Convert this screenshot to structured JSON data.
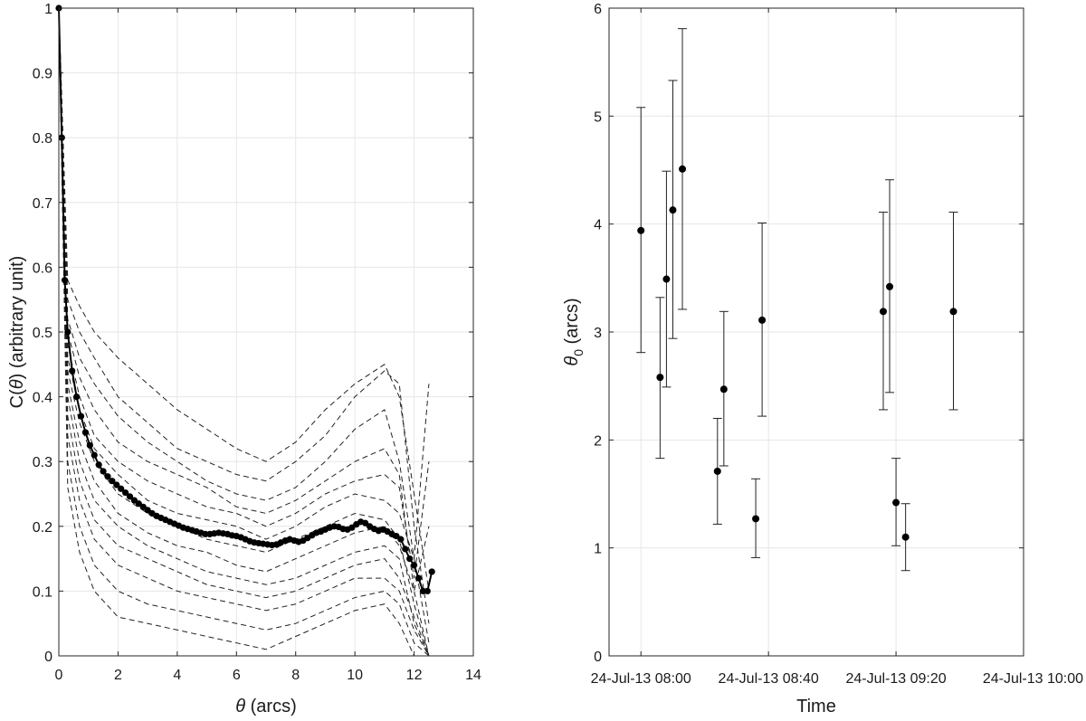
{
  "chart_data": [
    {
      "type": "line",
      "xlabel_pre": "",
      "xlabel_sym": "θ",
      "xlabel_post": " (arcs)",
      "ylabel_pre": "C(",
      "ylabel_sym": "θ",
      "ylabel_post": ") (arbitrary unit)",
      "xlim": [
        0,
        14
      ],
      "ylim": [
        0,
        1
      ],
      "xticks": [
        0,
        2,
        4,
        6,
        8,
        10,
        12,
        14
      ],
      "yticks": [
        0,
        0.1,
        0.2,
        0.3,
        0.4,
        0.5,
        0.6,
        0.7,
        0.8,
        0.9,
        1
      ],
      "xtick_labels": [
        "0",
        "2",
        "4",
        "6",
        "8",
        "10",
        "12",
        "14"
      ],
      "ytick_labels": [
        "0",
        "0.1",
        "0.2",
        "0.3",
        "0.4",
        "0.5",
        "0.6",
        "0.7",
        "0.8",
        "0.9",
        "1"
      ],
      "grid": true,
      "mean": {
        "style": "solid-black-with-dots",
        "x": [
          0,
          0.1,
          0.2,
          0.3,
          0.45,
          0.6,
          0.75,
          0.9,
          1.05,
          1.2,
          1.35,
          1.5,
          1.65,
          1.8,
          1.95,
          2.1,
          2.25,
          2.4,
          2.55,
          2.7,
          2.85,
          3.0,
          3.15,
          3.3,
          3.45,
          3.6,
          3.75,
          3.9,
          4.05,
          4.2,
          4.35,
          4.5,
          4.65,
          4.8,
          4.95,
          5.1,
          5.25,
          5.4,
          5.55,
          5.7,
          5.85,
          6.0,
          6.15,
          6.3,
          6.45,
          6.6,
          6.75,
          6.9,
          7.05,
          7.2,
          7.35,
          7.5,
          7.65,
          7.8,
          7.95,
          8.1,
          8.25,
          8.4,
          8.55,
          8.7,
          8.85,
          9.0,
          9.15,
          9.3,
          9.45,
          9.6,
          9.75,
          9.9,
          10.05,
          10.2,
          10.35,
          10.5,
          10.65,
          10.8,
          10.95,
          11.1,
          11.25,
          11.4,
          11.55,
          11.7,
          11.85,
          12.0,
          12.15,
          12.3,
          12.45,
          12.6
        ],
        "y": [
          1.0,
          0.8,
          0.58,
          0.5,
          0.44,
          0.4,
          0.37,
          0.345,
          0.325,
          0.31,
          0.295,
          0.285,
          0.277,
          0.27,
          0.264,
          0.258,
          0.252,
          0.246,
          0.24,
          0.235,
          0.23,
          0.225,
          0.22,
          0.216,
          0.213,
          0.21,
          0.207,
          0.204,
          0.201,
          0.198,
          0.196,
          0.194,
          0.192,
          0.19,
          0.188,
          0.188,
          0.189,
          0.19,
          0.189,
          0.188,
          0.186,
          0.185,
          0.183,
          0.18,
          0.177,
          0.175,
          0.174,
          0.173,
          0.172,
          0.171,
          0.172,
          0.175,
          0.178,
          0.18,
          0.178,
          0.176,
          0.178,
          0.182,
          0.186,
          0.19,
          0.192,
          0.195,
          0.198,
          0.2,
          0.199,
          0.196,
          0.195,
          0.198,
          0.203,
          0.207,
          0.205,
          0.2,
          0.196,
          0.193,
          0.195,
          0.192,
          0.188,
          0.185,
          0.18,
          0.165,
          0.15,
          0.14,
          0.12,
          0.1,
          0.1,
          0.13
        ]
      },
      "dashed_series": [
        {
          "x": [
            0,
            0.3,
            0.7,
            1.2,
            2,
            3,
            4,
            5,
            6,
            7,
            8,
            9,
            10,
            11,
            11.5,
            12,
            12.5
          ],
          "y": [
            1,
            0.58,
            0.54,
            0.5,
            0.46,
            0.42,
            0.38,
            0.35,
            0.32,
            0.3,
            0.33,
            0.38,
            0.42,
            0.45,
            0.4,
            0.25,
            0.1
          ]
        },
        {
          "x": [
            0,
            0.3,
            0.7,
            1.2,
            2,
            3,
            4,
            5,
            6,
            7,
            8,
            9,
            10,
            11,
            11.5,
            12,
            12.5
          ],
          "y": [
            1,
            0.55,
            0.5,
            0.46,
            0.4,
            0.36,
            0.32,
            0.3,
            0.28,
            0.27,
            0.3,
            0.34,
            0.4,
            0.44,
            0.42,
            0.2,
            0.05
          ]
        },
        {
          "x": [
            0,
            0.3,
            0.7,
            1.2,
            2,
            3,
            4,
            5,
            6,
            7,
            8,
            9,
            10,
            11,
            11.5,
            12,
            12.5
          ],
          "y": [
            1,
            0.52,
            0.46,
            0.42,
            0.37,
            0.33,
            0.3,
            0.27,
            0.25,
            0.24,
            0.26,
            0.3,
            0.35,
            0.38,
            0.3,
            0.15,
            0.02
          ]
        },
        {
          "x": [
            0,
            0.3,
            0.7,
            1.2,
            2,
            3,
            4,
            5,
            6,
            7,
            8,
            9,
            10,
            11,
            11.5,
            12,
            12.5
          ],
          "y": [
            1,
            0.5,
            0.43,
            0.38,
            0.33,
            0.3,
            0.28,
            0.26,
            0.23,
            0.22,
            0.24,
            0.27,
            0.3,
            0.32,
            0.28,
            0.1,
            0.0
          ]
        },
        {
          "x": [
            0,
            0.3,
            0.7,
            1.2,
            2,
            3,
            4,
            5,
            6,
            7,
            8,
            9,
            10,
            11,
            11.5,
            12,
            12.5
          ],
          "y": [
            1,
            0.48,
            0.4,
            0.34,
            0.3,
            0.27,
            0.25,
            0.23,
            0.22,
            0.2,
            0.22,
            0.25,
            0.27,
            0.28,
            0.26,
            0.12,
            0.3
          ]
        },
        {
          "x": [
            0,
            0.3,
            0.7,
            1.2,
            2,
            3,
            4,
            5,
            6,
            7,
            8,
            9,
            10,
            11,
            11.5,
            12,
            12.5
          ],
          "y": [
            1,
            0.46,
            0.38,
            0.32,
            0.28,
            0.24,
            0.22,
            0.21,
            0.2,
            0.18,
            0.2,
            0.23,
            0.25,
            0.24,
            0.22,
            0.15,
            0.42
          ]
        },
        {
          "x": [
            0,
            0.3,
            0.7,
            1.2,
            2,
            3,
            4,
            5,
            6,
            7,
            8,
            9,
            10,
            11,
            11.5,
            12,
            12.5
          ],
          "y": [
            1,
            0.44,
            0.36,
            0.3,
            0.25,
            0.22,
            0.2,
            0.18,
            0.17,
            0.16,
            0.18,
            0.2,
            0.22,
            0.21,
            0.18,
            0.08,
            0.0
          ]
        },
        {
          "x": [
            0,
            0.3,
            0.7,
            1.2,
            2,
            3,
            4,
            5,
            6,
            7,
            8,
            9,
            10,
            11,
            11.5,
            12,
            12.5
          ],
          "y": [
            1,
            0.42,
            0.33,
            0.27,
            0.22,
            0.19,
            0.17,
            0.16,
            0.14,
            0.13,
            0.15,
            0.17,
            0.19,
            0.2,
            0.17,
            0.1,
            0.2
          ]
        },
        {
          "x": [
            0,
            0.3,
            0.7,
            1.2,
            2,
            3,
            4,
            5,
            6,
            7,
            8,
            9,
            10,
            11,
            11.5,
            12,
            12.5
          ],
          "y": [
            1,
            0.4,
            0.3,
            0.24,
            0.2,
            0.17,
            0.15,
            0.13,
            0.12,
            0.11,
            0.12,
            0.14,
            0.16,
            0.17,
            0.15,
            0.05,
            0.0
          ]
        },
        {
          "x": [
            0,
            0.3,
            0.7,
            1.2,
            2,
            3,
            4,
            5,
            6,
            7,
            8,
            9,
            10,
            11,
            11.5,
            12,
            12.5
          ],
          "y": [
            1,
            0.37,
            0.27,
            0.21,
            0.17,
            0.15,
            0.13,
            0.11,
            0.1,
            0.09,
            0.1,
            0.12,
            0.14,
            0.15,
            0.12,
            0.06,
            0.0
          ]
        },
        {
          "x": [
            0,
            0.3,
            0.7,
            1.2,
            2,
            3,
            4,
            5,
            6,
            7,
            8,
            9,
            10,
            11,
            11.5,
            12,
            12.5
          ],
          "y": [
            1,
            0.34,
            0.24,
            0.18,
            0.14,
            0.12,
            0.1,
            0.09,
            0.08,
            0.07,
            0.08,
            0.1,
            0.12,
            0.12,
            0.1,
            0.04,
            0.0
          ]
        },
        {
          "x": [
            0,
            0.3,
            0.7,
            1.2,
            2,
            3,
            4,
            5,
            6,
            7,
            8,
            9,
            10,
            11,
            11.5,
            12,
            12.5
          ],
          "y": [
            1,
            0.3,
            0.2,
            0.14,
            0.1,
            0.08,
            0.07,
            0.06,
            0.05,
            0.04,
            0.05,
            0.07,
            0.09,
            0.1,
            0.08,
            0.02,
            0.0
          ]
        },
        {
          "x": [
            0,
            0.3,
            0.7,
            1.2,
            2,
            3,
            4,
            5,
            6,
            7,
            8,
            9,
            10,
            11,
            11.5,
            12,
            12.5
          ],
          "y": [
            1,
            0.26,
            0.16,
            0.1,
            0.06,
            0.05,
            0.04,
            0.03,
            0.02,
            0.01,
            0.03,
            0.05,
            0.07,
            0.08,
            0.05,
            0.0,
            0.0
          ]
        }
      ]
    },
    {
      "type": "scatter",
      "xlabel": "Time",
      "ylabel_sym": "θ",
      "ylabel_sub": "0",
      "ylabel_post": " (arcs)",
      "xlim": [
        "24-Jul-13 07:50",
        "24-Jul-13 10:00"
      ],
      "ylim": [
        0,
        6
      ],
      "xticks": [
        "24-Jul-13 08:00",
        "24-Jul-13 08:40",
        "24-Jul-13 09:20",
        "24-Jul-13 10:00"
      ],
      "yticks": [
        0,
        1,
        2,
        3,
        4,
        5,
        6
      ],
      "ytick_labels": [
        "0",
        "1",
        "2",
        "3",
        "4",
        "5",
        "6"
      ],
      "grid": true,
      "points": [
        {
          "time": "24-Jul-13 08:00",
          "y": 3.94,
          "lower": 2.81,
          "upper": 5.08
        },
        {
          "time": "24-Jul-13 08:06",
          "y": 2.58,
          "lower": 1.83,
          "upper": 3.32
        },
        {
          "time": "24-Jul-13 08:08",
          "y": 3.49,
          "lower": 2.49,
          "upper": 4.49
        },
        {
          "time": "24-Jul-13 08:10",
          "y": 4.13,
          "lower": 2.94,
          "upper": 5.33
        },
        {
          "time": "24-Jul-13 08:13",
          "y": 4.51,
          "lower": 3.21,
          "upper": 5.81
        },
        {
          "time": "24-Jul-13 08:24",
          "y": 1.71,
          "lower": 1.22,
          "upper": 2.2
        },
        {
          "time": "24-Jul-13 08:26",
          "y": 2.47,
          "lower": 1.76,
          "upper": 3.19
        },
        {
          "time": "24-Jul-13 08:36",
          "y": 1.27,
          "lower": 0.91,
          "upper": 1.64
        },
        {
          "time": "24-Jul-13 08:38",
          "y": 3.11,
          "lower": 2.22,
          "upper": 4.01
        },
        {
          "time": "24-Jul-13 09:16",
          "y": 3.19,
          "lower": 2.28,
          "upper": 4.11
        },
        {
          "time": "24-Jul-13 09:18",
          "y": 3.42,
          "lower": 2.44,
          "upper": 4.41
        },
        {
          "time": "24-Jul-13 09:20",
          "y": 1.42,
          "lower": 1.02,
          "upper": 1.83
        },
        {
          "time": "24-Jul-13 09:23",
          "y": 1.1,
          "lower": 0.79,
          "upper": 1.41
        },
        {
          "time": "24-Jul-13 09:38",
          "y": 3.19,
          "lower": 2.28,
          "upper": 4.11
        }
      ]
    }
  ]
}
